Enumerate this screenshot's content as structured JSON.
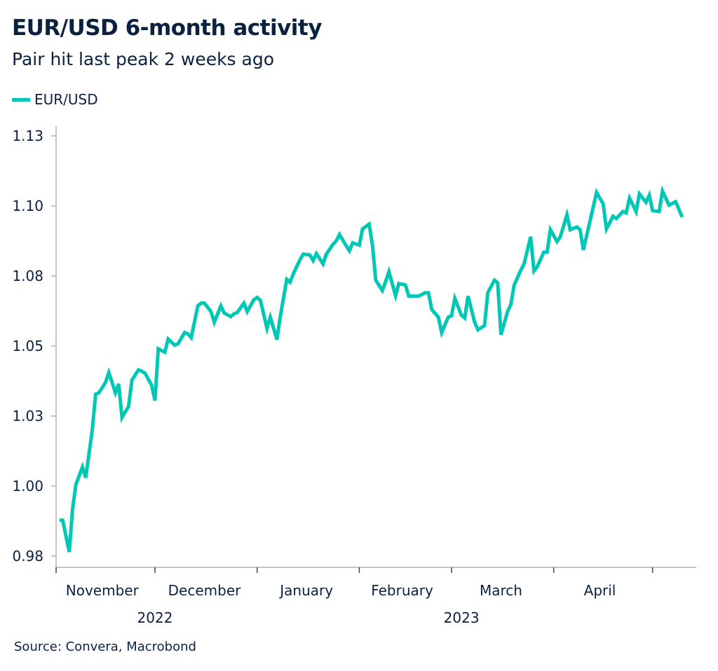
{
  "title": "EUR/USD 6-month activity",
  "subtitle": "Pair hit last peak 2 weeks ago",
  "source": "Source: Convera, Macrobond",
  "colors": {
    "line": "#00c8b4",
    "text": "#0a2240",
    "axis": "#b0b0b0"
  },
  "chart_data": {
    "type": "line",
    "title": "EUR/USD 6-month activity",
    "subtitle": "Pair hit last peak 2 weeks ago",
    "xlabel": "",
    "ylabel": "",
    "legend": {
      "position": "top-left",
      "entries": [
        "EUR/USD"
      ]
    },
    "grid": false,
    "ylim": [
      0.965,
      1.13
    ],
    "xlim": [
      "2022-11-01",
      "2023-05-17"
    ],
    "y_ticks": [
      {
        "value": 0.975,
        "label": "0.98"
      },
      {
        "value": 1.0,
        "label": "1.00"
      },
      {
        "value": 1.025,
        "label": "1.03"
      },
      {
        "value": 1.05,
        "label": "1.05"
      },
      {
        "value": 1.075,
        "label": "1.08"
      },
      {
        "value": 1.1,
        "label": "1.10"
      },
      {
        "value": 1.125,
        "label": "1.13"
      }
    ],
    "x_month_ticks": [
      "2022-11-01",
      "2022-12-01",
      "2023-01-01",
      "2023-02-01",
      "2023-03-01",
      "2023-04-01",
      "2023-05-01"
    ],
    "x_month_labels": [
      {
        "label": "November",
        "date": "2022-11-15"
      },
      {
        "label": "December",
        "date": "2022-12-16"
      },
      {
        "label": "January",
        "date": "2023-01-16"
      },
      {
        "label": "February",
        "date": "2023-02-14"
      },
      {
        "label": "March",
        "date": "2023-03-16"
      },
      {
        "label": "April",
        "date": "2023-04-15"
      }
    ],
    "x_year_labels": [
      {
        "label": "2022",
        "date": "2022-12-01"
      },
      {
        "label": "2023",
        "date": "2023-03-04"
      }
    ],
    "series": [
      {
        "name": "EUR/USD",
        "x": [
          "2022-11-02",
          "2022-11-03",
          "2022-11-05",
          "2022-11-06",
          "2022-11-07",
          "2022-11-09",
          "2022-11-10",
          "2022-11-12",
          "2022-11-13",
          "2022-11-14",
          "2022-11-16",
          "2022-11-17",
          "2022-11-19",
          "2022-11-20",
          "2022-11-21",
          "2022-11-23",
          "2022-11-24",
          "2022-11-26",
          "2022-11-27",
          "2022-11-28",
          "2022-11-30",
          "2022-12-01",
          "2022-12-02",
          "2022-12-04",
          "2022-12-05",
          "2022-12-07",
          "2022-12-08",
          "2022-12-10",
          "2022-12-11",
          "2022-12-12",
          "2022-12-14",
          "2022-12-15",
          "2022-12-16",
          "2022-12-18",
          "2022-12-19",
          "2022-12-21",
          "2022-12-22",
          "2022-12-24",
          "2022-12-25",
          "2022-12-26",
          "2022-12-28",
          "2022-12-29",
          "2022-12-31",
          "2023-01-01",
          "2023-01-02",
          "2023-01-04",
          "2023-01-05",
          "2023-01-07",
          "2023-01-08",
          "2023-01-10",
          "2023-01-11",
          "2023-01-12",
          "2023-01-14",
          "2023-01-15",
          "2023-01-17",
          "2023-01-18",
          "2023-01-19",
          "2023-01-21",
          "2023-01-22",
          "2023-01-24",
          "2023-01-25",
          "2023-01-26",
          "2023-01-28",
          "2023-01-29",
          "2023-01-30",
          "2023-02-01",
          "2023-02-02",
          "2023-02-04",
          "2023-02-05",
          "2023-02-06",
          "2023-02-08",
          "2023-02-09",
          "2023-02-10",
          "2023-02-12",
          "2023-02-13",
          "2023-02-15",
          "2023-02-16",
          "2023-02-19",
          "2023-02-21",
          "2023-02-22",
          "2023-02-23",
          "2023-02-25",
          "2023-02-26",
          "2023-02-28",
          "2023-03-01",
          "2023-03-02",
          "2023-03-04",
          "2023-03-05",
          "2023-03-06",
          "2023-03-08",
          "2023-03-09",
          "2023-03-11",
          "2023-03-12",
          "2023-03-14",
          "2023-03-15",
          "2023-03-16",
          "2023-03-18",
          "2023-03-19",
          "2023-03-20",
          "2023-03-22",
          "2023-03-23",
          "2023-03-25",
          "2023-03-26",
          "2023-03-27",
          "2023-03-29",
          "2023-03-30",
          "2023-03-31",
          "2023-04-02",
          "2023-04-03",
          "2023-04-05",
          "2023-04-06",
          "2023-04-08",
          "2023-04-09",
          "2023-04-10",
          "2023-04-14",
          "2023-04-16",
          "2023-04-17",
          "2023-04-19",
          "2023-04-20",
          "2023-04-22",
          "2023-04-23",
          "2023-04-24",
          "2023-04-26",
          "2023-04-27",
          "2023-04-29",
          "2023-04-30",
          "2023-05-01",
          "2023-05-03",
          "2023-05-04",
          "2023-05-06",
          "2023-05-08",
          "2023-05-10"
        ],
        "y": [
          0.9878,
          0.9878,
          0.9765,
          0.9918,
          1.0005,
          1.0068,
          1.003,
          1.0203,
          1.0328,
          1.0333,
          1.037,
          1.0405,
          1.0333,
          1.0365,
          1.0245,
          1.0285,
          1.0378,
          1.0415,
          1.041,
          1.0403,
          1.036,
          1.0305,
          1.049,
          1.0478,
          1.0525,
          1.0503,
          1.0508,
          1.0548,
          1.0543,
          1.053,
          1.0643,
          1.0653,
          1.0653,
          1.0623,
          1.0585,
          1.0643,
          1.0618,
          1.0605,
          1.0615,
          1.062,
          1.0653,
          1.0623,
          1.0665,
          1.0673,
          1.0663,
          1.0563,
          1.0603,
          1.0523,
          1.0603,
          1.0738,
          1.0728,
          1.0758,
          1.0808,
          1.0828,
          1.0825,
          1.0805,
          1.083,
          1.0793,
          1.0828,
          1.0863,
          1.0875,
          1.0898,
          1.0858,
          1.084,
          1.0868,
          1.086,
          1.0918,
          1.0935,
          1.086,
          1.0735,
          1.0698,
          1.073,
          1.0765,
          1.068,
          1.0723,
          1.0718,
          1.0678,
          1.0678,
          1.069,
          1.069,
          1.063,
          1.0603,
          1.0548,
          1.0603,
          1.0608,
          1.067,
          1.061,
          1.06,
          1.0678,
          1.0585,
          1.0558,
          1.0573,
          1.069,
          1.0735,
          1.0725,
          1.054,
          1.0623,
          1.0648,
          1.0718,
          1.077,
          1.0793,
          1.089,
          1.0768,
          1.0783,
          1.0835,
          1.0835,
          1.0915,
          1.0873,
          1.089,
          1.0968,
          1.0915,
          1.0925,
          1.0915,
          1.0843,
          1.1048,
          1.1008,
          1.0918,
          1.0963,
          1.0955,
          1.098,
          1.0975,
          1.1028,
          1.098,
          1.1043,
          1.1013,
          1.1038,
          1.0983,
          1.098,
          1.1053,
          1.1003,
          1.1015,
          1.096
        ]
      }
    ]
  }
}
